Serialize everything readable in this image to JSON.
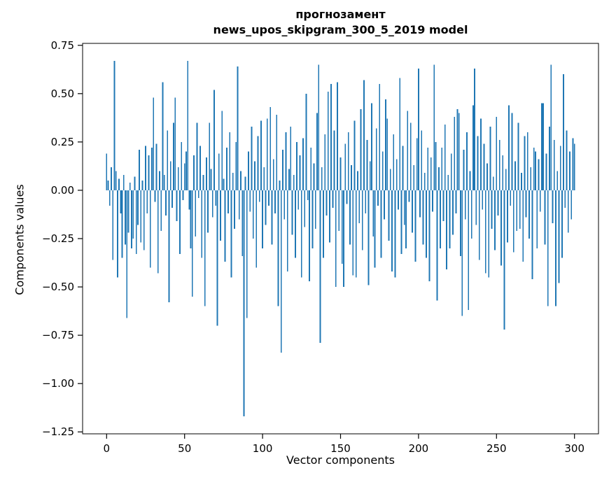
{
  "figure": {
    "title_line1": "прогнозамент",
    "title_line2": "news_upos_skipgram_300_5_2019 model",
    "xlabel": "Vector components",
    "ylabel": "Components values"
  },
  "chart_data": {
    "type": "bar",
    "title": "прогнозамент — news_upos_skipgram_300_5_2019 model",
    "xlabel": "Vector components",
    "ylabel": "Components values",
    "legend": "none",
    "grid": false,
    "bar_color": "#1f77b4",
    "x_is_index": true,
    "xlim": [
      -15.4,
      315.4
    ],
    "ylim": [
      -1.26,
      0.76
    ],
    "xtick_values": [
      0,
      50,
      100,
      150,
      200,
      250,
      300
    ],
    "xtick_labels": [
      "0",
      "50",
      "100",
      "150",
      "200",
      "250",
      "300"
    ],
    "ytick_values": [
      0.75,
      0.5,
      0.25,
      0.0,
      -0.25,
      -0.5,
      -0.75,
      -1.0,
      -1.25
    ],
    "ytick_labels": [
      "0.75",
      "0.50",
      "0.25",
      "0.00",
      "−0.25",
      "−0.50",
      "−0.75",
      "−1.00",
      "−1.25"
    ],
    "values": [
      0.19,
      0.05,
      -0.08,
      0.12,
      -0.36,
      0.67,
      0.1,
      -0.45,
      0.06,
      -0.12,
      -0.35,
      0.08,
      -0.28,
      -0.66,
      -0.22,
      0.04,
      -0.3,
      -0.25,
      0.07,
      -0.33,
      -0.18,
      0.21,
      -0.27,
      0.05,
      -0.31,
      0.23,
      -0.12,
      0.18,
      -0.4,
      0.22,
      0.48,
      -0.06,
      0.24,
      -0.43,
      0.1,
      -0.21,
      0.56,
      0.08,
      -0.13,
      0.31,
      -0.58,
      0.15,
      -0.09,
      0.35,
      0.48,
      -0.16,
      0.12,
      -0.33,
      0.25,
      -0.05,
      0.14,
      0.2,
      0.67,
      -0.1,
      -0.3,
      -0.55,
      0.18,
      -0.24,
      0.35,
      -0.04,
      0.23,
      -0.35,
      0.08,
      -0.6,
      0.17,
      -0.22,
      0.35,
      0.11,
      -0.14,
      0.52,
      -0.08,
      -0.7,
      0.19,
      -0.26,
      0.41,
      0.06,
      -0.37,
      0.22,
      -0.12,
      0.3,
      -0.45,
      0.09,
      -0.2,
      0.25,
      0.64,
      -0.15,
      0.1,
      -0.34,
      -1.17,
      0.07,
      -0.66,
      0.2,
      -0.11,
      0.33,
      -0.25,
      0.15,
      -0.4,
      0.28,
      -0.06,
      0.36,
      -0.3,
      0.12,
      -0.18,
      0.37,
      -0.08,
      0.43,
      -0.28,
      0.16,
      -0.12,
      0.39,
      -0.6,
      0.05,
      -0.84,
      0.21,
      -0.15,
      0.3,
      -0.42,
      0.11,
      0.33,
      -0.23,
      0.08,
      -0.35,
      0.25,
      -0.1,
      0.18,
      -0.45,
      0.27,
      -0.19,
      0.5,
      -0.05,
      -0.47,
      0.22,
      -0.3,
      0.14,
      -0.2,
      0.4,
      0.65,
      -0.79,
      0.12,
      -0.35,
      0.29,
      -0.13,
      0.51,
      -0.27,
      0.55,
      -0.09,
      0.31,
      -0.5,
      0.56,
      -0.21,
      0.17,
      -0.38,
      -0.5,
      0.24,
      -0.07,
      0.3,
      -0.28,
      0.13,
      -0.44,
      0.36,
      -0.45,
      0.1,
      -0.17,
      0.42,
      -0.31,
      0.57,
      -0.12,
      0.26,
      -0.49,
      0.15,
      0.45,
      -0.24,
      -0.4,
      0.32,
      -0.08,
      0.55,
      -0.35,
      0.2,
      -0.15,
      0.47,
      0.37,
      -0.26,
      0.11,
      -0.42,
      0.29,
      -0.45,
      0.16,
      -0.1,
      0.58,
      -0.33,
      0.23,
      -0.18,
      -0.3,
      0.41,
      -0.06,
      0.35,
      -0.22,
      0.13,
      -0.37,
      0.27,
      0.63,
      -0.14,
      0.31,
      -0.28,
      0.09,
      -0.35,
      0.22,
      -0.47,
      0.17,
      -0.11,
      0.65,
      0.25,
      -0.57,
      0.12,
      -0.3,
      0.22,
      -0.16,
      0.34,
      -0.41,
      0.08,
      -0.3,
      0.19,
      -0.23,
      0.38,
      -0.12,
      0.42,
      0.4,
      -0.34,
      -0.65,
      0.21,
      -0.15,
      0.3,
      -0.62,
      0.1,
      -0.25,
      0.44,
      0.63,
      -0.18,
      0.28,
      -0.36,
      0.37,
      -0.1,
      0.24,
      -0.43,
      0.14,
      -0.45,
      0.33,
      -0.2,
      0.07,
      -0.31,
      0.38,
      -0.13,
      0.26,
      -0.39,
      0.18,
      -0.72,
      0.11,
      -0.27,
      0.44,
      -0.08,
      0.4,
      -0.32,
      0.15,
      -0.21,
      0.35,
      -0.2,
      0.09,
      -0.37,
      0.28,
      -0.14,
      0.3,
      -0.25,
      0.12,
      -0.46,
      0.22,
      0.2,
      -0.3,
      0.16,
      -0.11,
      0.45,
      0.45,
      -0.28,
      0.19,
      -0.6,
      0.33,
      0.65,
      -0.17,
      0.26,
      -0.6,
      0.1,
      -0.48,
      0.23,
      -0.35,
      0.6,
      -0.09,
      0.31,
      -0.22,
      0.2,
      -0.15,
      0.27,
      0.24
    ]
  }
}
